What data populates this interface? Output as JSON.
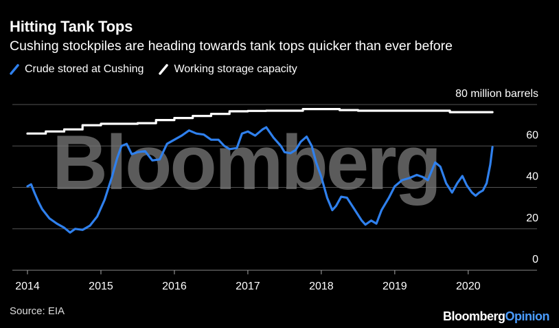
{
  "header": {
    "title": "Hitting Tank Tops",
    "subtitle": "Cushing stockpiles are heading towards tank tops quicker than ever before"
  },
  "legend": {
    "crude_label": "Crude stored at Cushing",
    "capacity_label": "Working storage capacity"
  },
  "footer": {
    "source": "Source: EIA",
    "brand_main": "Bloomberg",
    "brand_opinion": "Opinion"
  },
  "watermark": "Bloomberg",
  "colors": {
    "crude": "#2f80ed",
    "capacity": "#ffffff",
    "grid": "#555555",
    "background": "#000000"
  },
  "chart_data": {
    "type": "line",
    "title": "Hitting Tank Tops",
    "xlabel": "",
    "ylabel": "million barrels",
    "x_ticks": [
      "2014",
      "2015",
      "2016",
      "2017",
      "2018",
      "2019",
      "2020"
    ],
    "y_ticks": [
      "0",
      "20",
      "40",
      "60",
      "80 million barrels"
    ],
    "ylim": [
      0,
      80
    ],
    "xlim": [
      2014.0,
      2020.6
    ],
    "series": [
      {
        "name": "Crude stored at Cushing",
        "points": [
          [
            2014.0,
            40.5
          ],
          [
            2014.05,
            41.5
          ],
          [
            2014.1,
            37
          ],
          [
            2014.15,
            33
          ],
          [
            2014.2,
            29.5
          ],
          [
            2014.3,
            25
          ],
          [
            2014.4,
            22.5
          ],
          [
            2014.5,
            20.5
          ],
          [
            2014.58,
            18.2
          ],
          [
            2014.65,
            20
          ],
          [
            2014.75,
            19.5
          ],
          [
            2014.85,
            21.5
          ],
          [
            2014.95,
            26
          ],
          [
            2015.05,
            34
          ],
          [
            2015.15,
            45
          ],
          [
            2015.22,
            54
          ],
          [
            2015.28,
            60
          ],
          [
            2015.35,
            61
          ],
          [
            2015.42,
            56
          ],
          [
            2015.5,
            57
          ],
          [
            2015.6,
            57.5
          ],
          [
            2015.7,
            53
          ],
          [
            2015.8,
            53.5
          ],
          [
            2015.9,
            61
          ],
          [
            2016.0,
            63
          ],
          [
            2016.1,
            65
          ],
          [
            2016.2,
            67.5
          ],
          [
            2016.3,
            66
          ],
          [
            2016.4,
            65.5
          ],
          [
            2016.5,
            63
          ],
          [
            2016.6,
            63
          ],
          [
            2016.68,
            60
          ],
          [
            2016.75,
            58.5
          ],
          [
            2016.85,
            59
          ],
          [
            2016.92,
            66
          ],
          [
            2017.0,
            67
          ],
          [
            2017.1,
            65
          ],
          [
            2017.2,
            68
          ],
          [
            2017.25,
            69
          ],
          [
            2017.35,
            64
          ],
          [
            2017.45,
            60
          ],
          [
            2017.5,
            57
          ],
          [
            2017.58,
            56.5
          ],
          [
            2017.65,
            58
          ],
          [
            2017.72,
            62
          ],
          [
            2017.8,
            64.5
          ],
          [
            2017.87,
            60
          ],
          [
            2017.93,
            52
          ],
          [
            2018.0,
            45
          ],
          [
            2018.08,
            35
          ],
          [
            2018.15,
            29
          ],
          [
            2018.2,
            31
          ],
          [
            2018.27,
            35.5
          ],
          [
            2018.35,
            35
          ],
          [
            2018.45,
            29.5
          ],
          [
            2018.55,
            24
          ],
          [
            2018.6,
            22
          ],
          [
            2018.68,
            24
          ],
          [
            2018.75,
            22.5
          ],
          [
            2018.82,
            29
          ],
          [
            2018.92,
            35
          ],
          [
            2019.0,
            40.5
          ],
          [
            2019.1,
            43.5
          ],
          [
            2019.2,
            44.5
          ],
          [
            2019.3,
            46
          ],
          [
            2019.38,
            45
          ],
          [
            2019.45,
            43.5
          ],
          [
            2019.55,
            52
          ],
          [
            2019.62,
            50
          ],
          [
            2019.7,
            42
          ],
          [
            2019.78,
            37.5
          ],
          [
            2019.85,
            42
          ],
          [
            2019.92,
            45.5
          ],
          [
            2019.98,
            41
          ],
          [
            2020.05,
            37.5
          ],
          [
            2020.1,
            36
          ],
          [
            2020.15,
            37.5
          ],
          [
            2020.2,
            38.5
          ],
          [
            2020.25,
            42
          ],
          [
            2020.3,
            51
          ],
          [
            2020.33,
            59.5
          ]
        ]
      },
      {
        "name": "Working storage capacity",
        "points": [
          [
            2014.0,
            66
          ],
          [
            2014.25,
            66
          ],
          [
            2014.25,
            67
          ],
          [
            2014.5,
            67
          ],
          [
            2014.5,
            68
          ],
          [
            2014.75,
            68
          ],
          [
            2014.75,
            70
          ],
          [
            2015.0,
            70
          ],
          [
            2015.0,
            70.7
          ],
          [
            2015.5,
            70.7
          ],
          [
            2015.5,
            71
          ],
          [
            2015.75,
            71
          ],
          [
            2015.75,
            72.5
          ],
          [
            2016.0,
            72.5
          ],
          [
            2016.0,
            73.5
          ],
          [
            2016.25,
            73.5
          ],
          [
            2016.25,
            74.5
          ],
          [
            2016.5,
            74.5
          ],
          [
            2016.5,
            75.5
          ],
          [
            2016.75,
            75.5
          ],
          [
            2016.75,
            76.7
          ],
          [
            2017.0,
            76.7
          ],
          [
            2017.0,
            76.9
          ],
          [
            2017.25,
            76.9
          ],
          [
            2017.25,
            77
          ],
          [
            2017.75,
            77
          ],
          [
            2017.75,
            77.8
          ],
          [
            2018.25,
            77.8
          ],
          [
            2018.25,
            77.3
          ],
          [
            2018.5,
            77.3
          ],
          [
            2018.5,
            77
          ],
          [
            2019.75,
            77
          ],
          [
            2019.75,
            76.3
          ],
          [
            2020.33,
            76.3
          ]
        ]
      }
    ]
  }
}
